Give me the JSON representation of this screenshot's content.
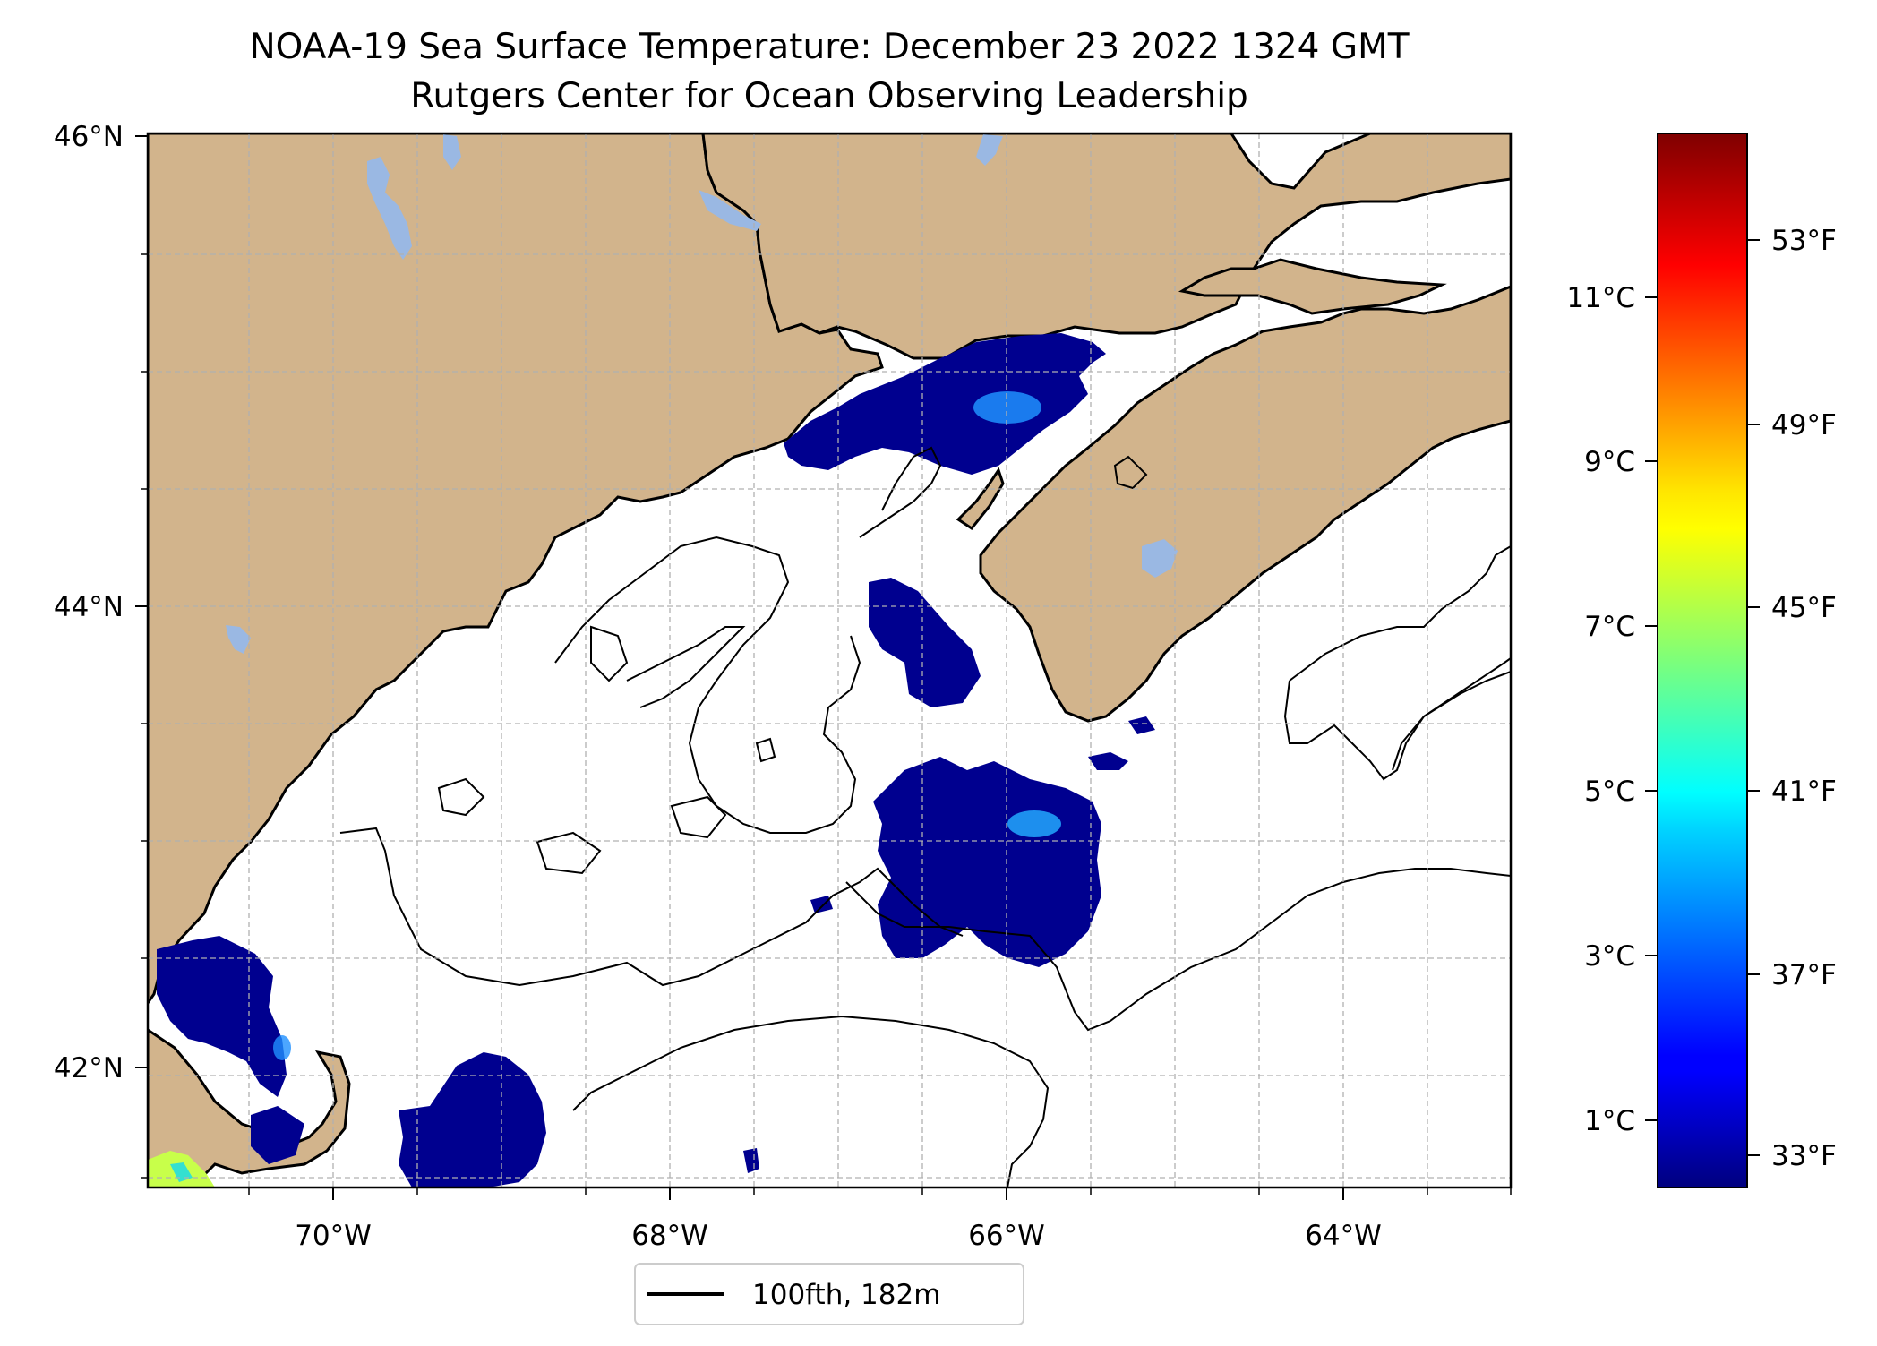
{
  "title": {
    "line1": "NOAA-19 Sea Surface Temperature: December 23 2022 1324 GMT",
    "line2": "Rutgers Center for Ocean Observing Leadership"
  },
  "map": {
    "lon_range": [
      -71.1,
      -63.0
    ],
    "lat_range": [
      41.5,
      46.0
    ],
    "x_ticks": [
      {
        "value": -70,
        "label": "70°W"
      },
      {
        "value": -68,
        "label": "68°W"
      },
      {
        "value": -66,
        "label": "66°W"
      },
      {
        "value": -64,
        "label": "64°W"
      }
    ],
    "y_ticks": [
      {
        "value": 46,
        "label": "46°N"
      },
      {
        "value": 44,
        "label": "44°N"
      },
      {
        "value": 42,
        "label": "42°N"
      }
    ],
    "grid": true,
    "colors": {
      "land": "#d2b48c",
      "lakes": "#9ab8e3",
      "ocean": "#ffffff",
      "coast": "#000000",
      "grid": "#b0b0b0"
    }
  },
  "legend": {
    "entries": [
      {
        "label": "100fth, 182m",
        "color": "#000000"
      }
    ],
    "placement": "bottom-center"
  },
  "colorbar": {
    "colormap": "jet",
    "celsius_ticks": [
      "1°C",
      "3°C",
      "5°C",
      "7°C",
      "9°C",
      "11°C"
    ],
    "fahrenheit_ticks": [
      "33°F",
      "37°F",
      "41°F",
      "45°F",
      "49°F",
      "53°F"
    ],
    "range_celsius": [
      0.3,
      13.1
    ]
  }
}
